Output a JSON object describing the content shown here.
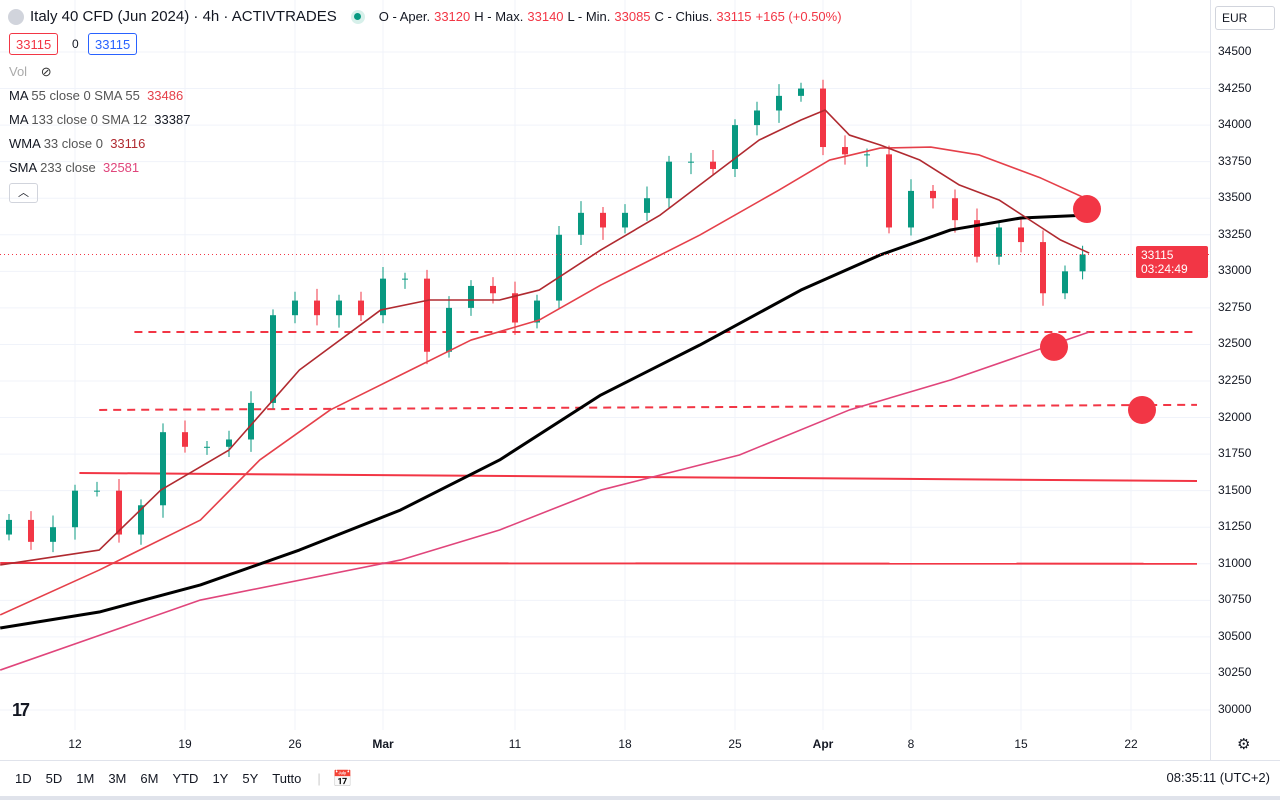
{
  "header": {
    "symbol": "Italy 40 CFD (Jun 2024) · 4h · ACTIVTRADES",
    "open_label": "O - Aper.",
    "open": "33120",
    "high_label": "H - Max.",
    "high": "33140",
    "low_label": "L - Min.",
    "low": "33085",
    "close_label": "C - Chius.",
    "close": "33115",
    "change": "+165 (+0.50%)",
    "bid": "33115",
    "spread": "0",
    "ask": "33115"
  },
  "legend": {
    "vol": "Vol",
    "items": [
      {
        "name": "MA",
        "params": "55 close 0 SMA 55",
        "value": "33486",
        "color": "#e5404a"
      },
      {
        "name": "MA",
        "params": "133 close 0 SMA 12",
        "value": "33387",
        "color": "#131722"
      },
      {
        "name": "WMA",
        "params": "33 close 0",
        "value": "33116",
        "color": "#b02a30"
      },
      {
        "name": "SMA",
        "params": "233 close",
        "value": "32581",
        "color": "#e0457b"
      }
    ]
  },
  "currency": "EUR",
  "current_price": {
    "price": "33115",
    "countdown": "03:24:49"
  },
  "bottom": {
    "ranges": [
      "1D",
      "5D",
      "1M",
      "3M",
      "6M",
      "YTD",
      "1Y",
      "5Y",
      "Tutto"
    ],
    "time": "08:35:11 (UTC+2)"
  },
  "logo": "TV",
  "chart_data": {
    "type": "candlestick",
    "title": "Italy 40 CFD (Jun 2024) · 4h · ACTIVTRADES",
    "ylim": [
      29875,
      34700
    ],
    "yticks": [
      "34500",
      "34250",
      "34000",
      "33750",
      "33500",
      "33250",
      "33000",
      "32750",
      "32500",
      "32250",
      "32000",
      "31750",
      "31500",
      "31250",
      "31000",
      "30750",
      "30500",
      "30250",
      "30000"
    ],
    "xticks": [
      {
        "label": "12",
        "day": 0
      },
      {
        "label": "19",
        "day": 5
      },
      {
        "label": "26",
        "day": 10
      },
      {
        "label": "Mar",
        "day": 14
      },
      {
        "label": "11",
        "day": 20
      },
      {
        "label": "18",
        "day": 25
      },
      {
        "label": "25",
        "day": 30
      },
      {
        "label": "Apr",
        "day": 34
      },
      {
        "label": "8",
        "day": 38
      },
      {
        "label": "15",
        "day": 43
      },
      {
        "label": "22",
        "day": 48
      }
    ],
    "x_unit": "trading days since Feb 12",
    "closes": [
      [
        -3,
        31300
      ],
      [
        -2,
        31150
      ],
      [
        -1,
        31250
      ],
      [
        0,
        31500
      ],
      [
        1,
        31500
      ],
      [
        2,
        31200
      ],
      [
        3,
        31400
      ],
      [
        4,
        31900
      ],
      [
        5,
        31800
      ],
      [
        6,
        31800
      ],
      [
        7,
        31850
      ],
      [
        8,
        32100
      ],
      [
        9,
        32700
      ],
      [
        10,
        32800
      ],
      [
        11,
        32700
      ],
      [
        12,
        32800
      ],
      [
        13,
        32700
      ],
      [
        14,
        32950
      ],
      [
        15,
        32950
      ],
      [
        16,
        32450
      ],
      [
        17,
        32750
      ],
      [
        18,
        32900
      ],
      [
        19,
        32850
      ],
      [
        20,
        32650
      ],
      [
        21,
        32800
      ],
      [
        22,
        33250
      ],
      [
        23,
        33400
      ],
      [
        24,
        33300
      ],
      [
        25,
        33400
      ],
      [
        26,
        33500
      ],
      [
        27,
        33750
      ],
      [
        28,
        33750
      ],
      [
        29,
        33700
      ],
      [
        30,
        34000
      ],
      [
        31,
        34100
      ],
      [
        32,
        34200
      ],
      [
        33,
        34250
      ],
      [
        34,
        33850
      ],
      [
        35,
        33800
      ],
      [
        36,
        33800
      ],
      [
        37,
        33300
      ],
      [
        38,
        33550
      ],
      [
        39,
        33500
      ],
      [
        40,
        33350
      ],
      [
        41,
        33100
      ],
      [
        42,
        33300
      ],
      [
        43,
        33200
      ],
      [
        44,
        32850
      ],
      [
        45,
        33000
      ],
      [
        45.8,
        33115
      ]
    ],
    "lines": [
      {
        "name": "MA 55",
        "color": "#e5404a",
        "points": [
          [
            -3.4,
            30650
          ],
          [
            1.1,
            30957
          ],
          [
            5.7,
            31299
          ],
          [
            8.4,
            31710
          ],
          [
            11.6,
            32052
          ],
          [
            14.8,
            32291
          ],
          [
            18,
            32530
          ],
          [
            21.1,
            32667
          ],
          [
            23.9,
            32906
          ],
          [
            28.4,
            33248
          ],
          [
            32,
            33556
          ],
          [
            34.3,
            33761
          ],
          [
            36.6,
            33843
          ],
          [
            38.9,
            33850
          ],
          [
            41.1,
            33796
          ],
          [
            43.9,
            33638
          ],
          [
            46.1,
            33488
          ]
        ]
      },
      {
        "name": "MA 133",
        "color": "#000000",
        "points": [
          [
            -3.4,
            30561
          ],
          [
            1.1,
            30670
          ],
          [
            5.7,
            30855
          ],
          [
            10.2,
            31094
          ],
          [
            14.8,
            31368
          ],
          [
            19.3,
            31710
          ],
          [
            23.9,
            32154
          ],
          [
            28.4,
            32496
          ],
          [
            33,
            32872
          ],
          [
            36.6,
            33112
          ],
          [
            39.8,
            33283
          ],
          [
            43,
            33365
          ],
          [
            46.1,
            33385
          ]
        ]
      },
      {
        "name": "WMA 33",
        "color": "#b02a30",
        "points": [
          [
            -3.4,
            30992
          ],
          [
            1.1,
            31094
          ],
          [
            3.9,
            31504
          ],
          [
            7,
            31778
          ],
          [
            10.2,
            32325
          ],
          [
            13.9,
            32736
          ],
          [
            16.1,
            32804
          ],
          [
            19.3,
            32804
          ],
          [
            21.1,
            32872
          ],
          [
            23.9,
            33146
          ],
          [
            26.6,
            33385
          ],
          [
            29.3,
            33693
          ],
          [
            31.1,
            33898
          ],
          [
            33,
            34035
          ],
          [
            34.1,
            34103
          ],
          [
            35.2,
            33932
          ],
          [
            36.6,
            33864
          ],
          [
            38.4,
            33761
          ],
          [
            40.2,
            33590
          ],
          [
            42,
            33488
          ],
          [
            43.4,
            33351
          ],
          [
            44.8,
            33214
          ],
          [
            46.1,
            33125
          ]
        ]
      },
      {
        "name": "SMA 233",
        "color": "#e0457b",
        "points": [
          [
            -3.4,
            30273
          ],
          [
            5.7,
            30752
          ],
          [
            14.8,
            31026
          ],
          [
            19.3,
            31231
          ],
          [
            23.9,
            31504
          ],
          [
            30.2,
            31744
          ],
          [
            35.2,
            32052
          ],
          [
            39.8,
            32257
          ],
          [
            46.1,
            32585
          ]
        ]
      }
    ],
    "hlines": [
      {
        "style": "dashed",
        "from": 2.7,
        "to": 51,
        "y1": 32585,
        "y2": 32585
      },
      {
        "style": "dashed",
        "from": 1.1,
        "to": 51,
        "y1": 32052,
        "y2": 32087
      },
      {
        "style": "solid",
        "from": 0.2,
        "to": 51,
        "y1": 31621,
        "y2": 31566
      },
      {
        "style": "solid",
        "from": -3.4,
        "to": 51,
        "y1": 31005,
        "y2": 31000
      }
    ],
    "markers": [
      [
        46,
        33426
      ],
      [
        44.5,
        32483
      ],
      [
        48.5,
        32052
      ]
    ],
    "last_price": 33115
  }
}
